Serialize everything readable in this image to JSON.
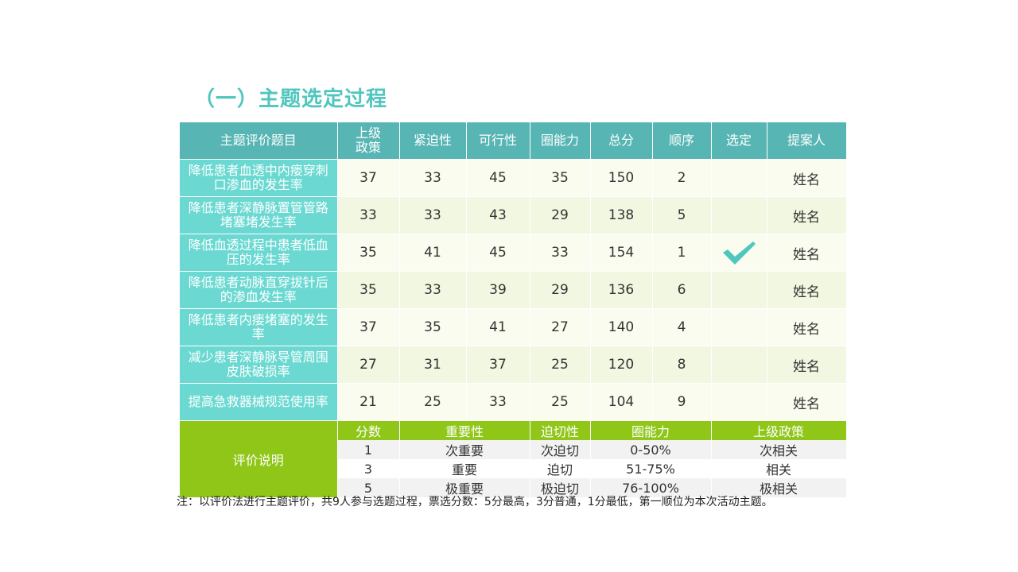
{
  "title": "（一）主题选定过程",
  "table": {
    "headers": [
      "主题评价题目",
      "上级\n政策",
      "紧迫性",
      "可行性",
      "圈能力",
      "总分",
      "顺序",
      "选定",
      "提案人"
    ],
    "rows": [
      {
        "topic": "降低患者血透中内瘘穿刺口渗血的发生率",
        "policy": "37",
        "urgency": "33",
        "feasibility": "45",
        "capability": "35",
        "total": "150",
        "order": "2",
        "selected": false,
        "proposer": "姓名"
      },
      {
        "topic": "降低患者深静脉置管管路堵塞堵发生率",
        "policy": "33",
        "urgency": "33",
        "feasibility": "43",
        "capability": "29",
        "total": "138",
        "order": "5",
        "selected": false,
        "proposer": "姓名"
      },
      {
        "topic": "降低血透过程中患者低血压的发生率",
        "policy": "35",
        "urgency": "41",
        "feasibility": "45",
        "capability": "33",
        "total": "154",
        "order": "1",
        "selected": true,
        "proposer": "姓名"
      },
      {
        "topic": "降低患者动脉直穿拔针后的渗血发生率",
        "policy": "35",
        "urgency": "33",
        "feasibility": "39",
        "capability": "29",
        "total": "136",
        "order": "6",
        "selected": false,
        "proposer": "姓名"
      },
      {
        "topic": "降低患者内瘘堵塞的发生率",
        "policy": "37",
        "urgency": "35",
        "feasibility": "41",
        "capability": "27",
        "total": "140",
        "order": "4",
        "selected": false,
        "proposer": "姓名"
      },
      {
        "topic": "减少患者深静脉导管周围皮肤破损率",
        "policy": "27",
        "urgency": "31",
        "feasibility": "37",
        "capability": "25",
        "total": "120",
        "order": "8",
        "selected": false,
        "proposer": "姓名"
      },
      {
        "topic": "提高急救器械规范使用率",
        "policy": "21",
        "urgency": "25",
        "feasibility": "33",
        "capability": "25",
        "total": "104",
        "order": "9",
        "selected": false,
        "proposer": "姓名"
      }
    ]
  },
  "evaluation": {
    "label": "评价说明",
    "headers": [
      "分数",
      "重要性",
      "迫切性",
      "圈能力",
      "上级政策"
    ],
    "rows": [
      [
        "1",
        "次重要",
        "次迫切",
        "0-50%",
        "次相关"
      ],
      [
        "3",
        "重要",
        "迫切",
        "51-75%",
        "相关"
      ],
      [
        "5",
        "极重要",
        "极迫切",
        "76-100%",
        "极相关"
      ]
    ]
  },
  "note": "注：以评价法进行主题评价，共9人参与选题过程，票选分数：5分最高，3分普通，1分最低，第一顺位为本次活动主题。",
  "icons": {
    "selected": "checkmark-icon"
  },
  "colors": {
    "title": "#4fc6be",
    "header": "#57b5b4",
    "topic": "#6bd9d2",
    "eval_label": "#c9e95a",
    "legend_header": "#8fc618",
    "check": "#4fc6be"
  }
}
